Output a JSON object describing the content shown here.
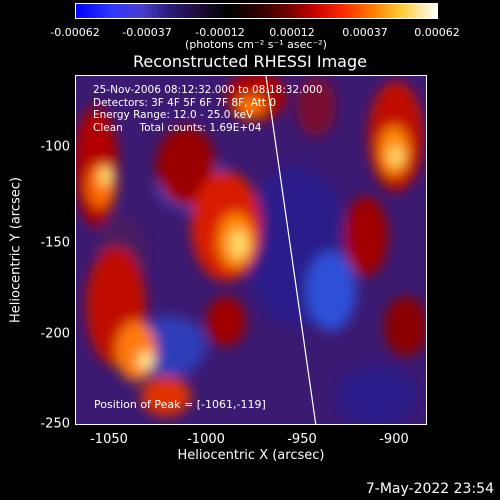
{
  "colorbar": {
    "ticks": [
      "-0.00062",
      "-0.00037",
      "-0.00012",
      "0.00012",
      "0.00037",
      "0.00062"
    ],
    "unit": "(photons cm⁻² s⁻¹ asec⁻²)"
  },
  "title": "Reconstructed RHESSI Image",
  "info": {
    "line1": "25-Nov-2006 08:12:32.000 to 08:18:32.000",
    "line2": "Detectors: 3F 4F 5F 6F 7F 8F, Att 0",
    "line3": "Energy Range: 12.0 - 25.0 keV",
    "line4": "Clean     Total counts: 1.69E+04"
  },
  "peak": "Position of Peak = [-1061,-119]",
  "axes": {
    "xlabel": "Heliocentric X (arcsec)",
    "ylabel": "Heliocentric Y (arcsec)",
    "xticks": [
      "-1050",
      "-1000",
      "-950",
      "-900"
    ],
    "yticks": [
      "-100",
      "-150",
      "-200",
      "-250"
    ]
  },
  "timestamp": "7-May-2022 23:54",
  "colors": {
    "background": "#000000",
    "text": "#ffffff",
    "limb_line": "#ffffff"
  }
}
